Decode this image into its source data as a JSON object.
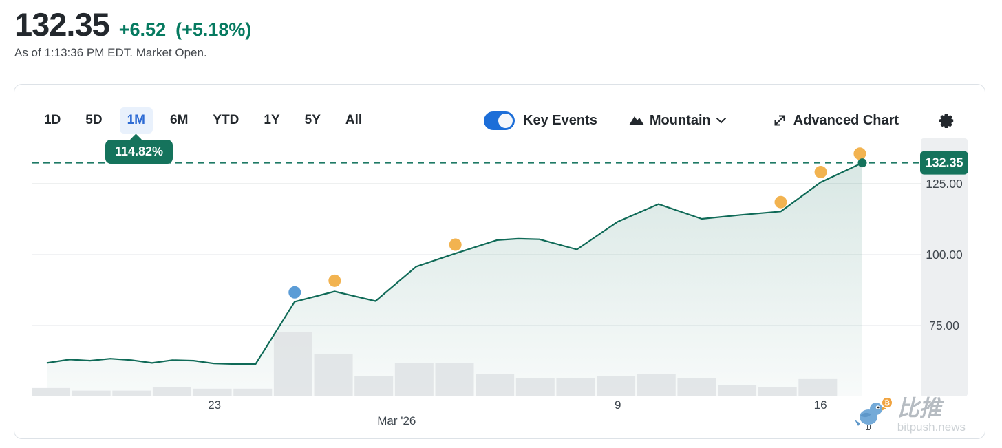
{
  "header": {
    "price": "132.35",
    "change": "+6.52",
    "change_pct": "(+5.18%)",
    "as_of": "As of 1:13:36 PM EDT. Market Open."
  },
  "toolbar": {
    "ranges": [
      {
        "label": "1D",
        "selected": false
      },
      {
        "label": "5D",
        "selected": false
      },
      {
        "label": "1M",
        "selected": true
      },
      {
        "label": "6M",
        "selected": false
      },
      {
        "label": "YTD",
        "selected": false
      },
      {
        "label": "1Y",
        "selected": false
      },
      {
        "label": "5Y",
        "selected": false
      },
      {
        "label": "All",
        "selected": false
      }
    ],
    "key_events_label": "Key Events",
    "key_events_on": true,
    "chart_type_label": "Mountain",
    "advanced_chart_label": "Advanced Chart"
  },
  "tooltip": {
    "text": "114.82%"
  },
  "chart_data": {
    "type": "area",
    "title": "1M stock price chart",
    "current_price": 132.35,
    "current_price_label": "132.35",
    "period_return": "114.82%",
    "ylim": [
      50,
      141
    ],
    "grid": true,
    "y_ticks": [
      {
        "label": "125.00",
        "value": 125
      },
      {
        "label": "100.00",
        "value": 100
      },
      {
        "label": "75.00",
        "value": 75
      }
    ],
    "x_ticks": [
      {
        "label": "23",
        "x": 0.205,
        "row": 0
      },
      {
        "label": "Mar '26",
        "x": 0.41,
        "row": 1
      },
      {
        "label": "9",
        "x": 0.659,
        "row": 0
      },
      {
        "label": "16",
        "x": 0.887,
        "row": 0
      }
    ],
    "line_points": [
      [
        0.0,
        61.8
      ],
      [
        0.028,
        63.0
      ],
      [
        0.053,
        62.6
      ],
      [
        0.078,
        63.3
      ],
      [
        0.104,
        62.8
      ],
      [
        0.129,
        61.8
      ],
      [
        0.154,
        62.8
      ],
      [
        0.18,
        62.6
      ],
      [
        0.205,
        61.6
      ],
      [
        0.23,
        61.4
      ],
      [
        0.256,
        61.4
      ],
      [
        0.304,
        83.4
      ],
      [
        0.353,
        87.0
      ],
      [
        0.403,
        83.6
      ],
      [
        0.453,
        95.8
      ],
      [
        0.501,
        100.4
      ],
      [
        0.552,
        105.1
      ],
      [
        0.578,
        105.6
      ],
      [
        0.604,
        105.4
      ],
      [
        0.65,
        101.8
      ],
      [
        0.7,
        111.6
      ],
      [
        0.75,
        117.8
      ],
      [
        0.803,
        112.6
      ],
      [
        0.851,
        114.0
      ],
      [
        0.9,
        115.2
      ],
      [
        0.949,
        125.5
      ],
      [
        1.0,
        132.35
      ]
    ],
    "volume_rel": [
      0.13,
      0.09,
      0.09,
      0.14,
      0.12,
      0.12,
      1.0,
      0.66,
      0.32,
      0.52,
      0.52,
      0.35,
      0.29,
      0.28,
      0.32,
      0.35,
      0.28,
      0.18,
      0.15,
      0.27
    ],
    "events": [
      {
        "x": 0.304,
        "price": 86.7,
        "kind": "blue"
      },
      {
        "x": 0.353,
        "price": 90.8,
        "kind": "orange"
      },
      {
        "x": 0.501,
        "price": 103.5,
        "kind": "orange"
      },
      {
        "x": 0.9,
        "price": 118.5,
        "kind": "orange"
      },
      {
        "x": 0.949,
        "price": 129.1,
        "kind": "orange"
      },
      {
        "x": 0.997,
        "price": 135.6,
        "kind": "orange"
      }
    ],
    "legend_position": "none"
  },
  "watermark": {
    "brand": "比推",
    "domain": "bitpush.news",
    "badge": "₿"
  },
  "colors": {
    "price_text": "#23282d",
    "change_green": "#067a60",
    "accent_green": "#15735c",
    "line_green": "#0f6a57",
    "dashed_green": "#1f7a66",
    "tab_blue": "#2d6bd4",
    "tab_bg": "#e9f1fc",
    "toggle_blue": "#1c6ed8",
    "event_orange": "#f2b350",
    "event_blue": "#5b9cd6",
    "grid": "#e3e6e8",
    "axis_bg": "#edeff1",
    "axis_label": "#40474e",
    "volume_bar": "#e0e3e5"
  }
}
